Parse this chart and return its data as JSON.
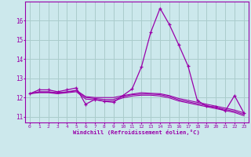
{
  "xlabel": "Windchill (Refroidissement éolien,°C)",
  "bg_color": "#cce8ec",
  "grid_color": "#aacccc",
  "line_color": "#9900aa",
  "x_values": [
    0,
    1,
    2,
    3,
    4,
    5,
    6,
    7,
    8,
    9,
    10,
    11,
    12,
    13,
    14,
    15,
    16,
    17,
    18,
    19,
    20,
    21,
    22,
    23
  ],
  "ylim": [
    10.7,
    17.0
  ],
  "xlim": [
    -0.5,
    23.5
  ],
  "series": [
    [
      12.2,
      12.4,
      12.4,
      12.3,
      12.4,
      12.5,
      11.65,
      11.9,
      11.8,
      11.75,
      12.1,
      12.45,
      13.6,
      15.4,
      16.65,
      15.8,
      14.75,
      13.65,
      11.85,
      11.55,
      11.5,
      11.3,
      12.1,
      11.2
    ],
    [
      12.2,
      12.3,
      12.3,
      12.25,
      12.3,
      12.38,
      12.05,
      12.0,
      12.0,
      12.0,
      12.1,
      12.18,
      12.25,
      12.22,
      12.2,
      12.1,
      11.95,
      11.85,
      11.75,
      11.65,
      11.55,
      11.45,
      11.35,
      11.2
    ],
    [
      12.2,
      12.28,
      12.28,
      12.22,
      12.28,
      12.35,
      12.0,
      11.95,
      11.9,
      11.9,
      12.05,
      12.15,
      12.18,
      12.18,
      12.15,
      12.05,
      11.88,
      11.78,
      11.68,
      11.58,
      11.48,
      11.38,
      11.28,
      11.12
    ],
    [
      12.2,
      12.25,
      12.25,
      12.2,
      12.25,
      12.3,
      11.92,
      11.88,
      11.82,
      11.82,
      11.98,
      12.08,
      12.12,
      12.12,
      12.08,
      11.98,
      11.82,
      11.72,
      11.62,
      11.52,
      11.42,
      11.32,
      11.22,
      11.05
    ]
  ],
  "yticks": [
    11,
    12,
    13,
    14,
    15,
    16
  ],
  "xticks": [
    0,
    1,
    2,
    3,
    4,
    5,
    6,
    7,
    8,
    9,
    10,
    11,
    12,
    13,
    14,
    15,
    16,
    17,
    18,
    19,
    20,
    21,
    22,
    23
  ]
}
